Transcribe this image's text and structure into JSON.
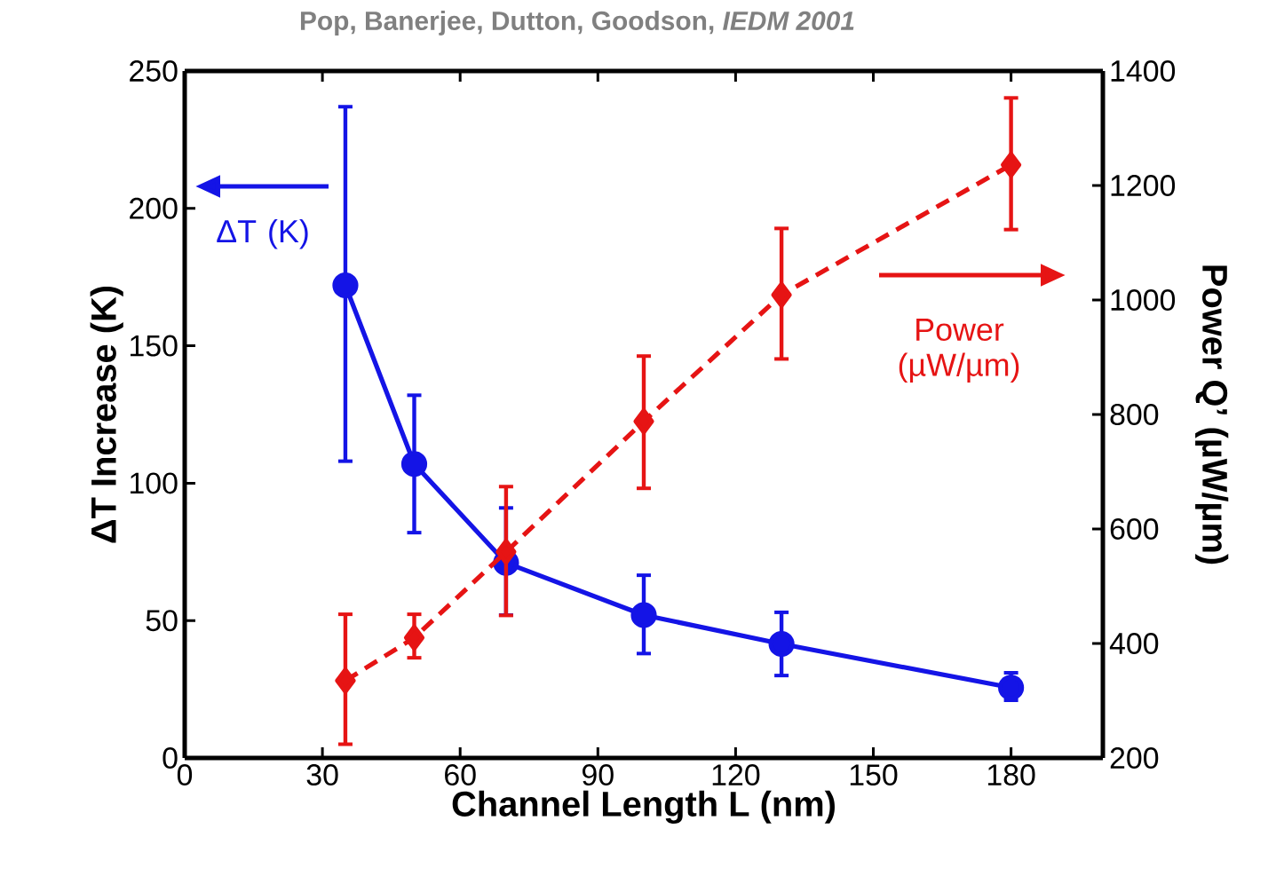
{
  "chart_data": {
    "type": "line",
    "title": "Pop, Banerjee, Dutton, Goodson, *IEDM 2001*",
    "xlabel": "Channel Length L (nm)",
    "ylabel": "ΔT Increase (K)",
    "y2label": "Power Q’ (µW/µm)",
    "x": [
      35,
      50,
      70,
      100,
      130,
      180
    ],
    "series": [
      {
        "name": "ΔT (K)",
        "color": "#1414e6",
        "marker": "circle",
        "line_style": "solid",
        "values": [
          172,
          107,
          71,
          52,
          41.5,
          25.6
        ],
        "errors": [
          [
            108,
            237
          ],
          [
            82,
            132
          ],
          [
            52,
            91
          ],
          [
            38,
            66.5
          ],
          [
            30,
            53
          ],
          [
            21,
            31
          ]
        ]
      },
      {
        "name": "Power (µW/µm)",
        "color": "#e61414",
        "marker": "diamond",
        "line_style": "dashed",
        "axis": "y2",
        "values": [
          335,
          410,
          560,
          788,
          1009,
          1236
        ],
        "errors": [
          [
            224,
            451
          ],
          [
            375,
            451
          ],
          [
            449,
            674
          ],
          [
            671,
            902
          ],
          [
            897,
            1125
          ],
          [
            1123,
            1353
          ]
        ]
      }
    ],
    "xlim": [
      0,
      200
    ],
    "xticks": [
      0,
      30,
      60,
      90,
      120,
      150,
      180
    ],
    "ylim": [
      0,
      250
    ],
    "yticks": [
      0,
      50,
      100,
      150,
      200,
      250
    ],
    "y2lim": [
      200,
      1400
    ],
    "y2ticks": [
      200,
      400,
      600,
      800,
      1000,
      1200,
      1400
    ],
    "legend": "top left",
    "grid": false
  }
}
